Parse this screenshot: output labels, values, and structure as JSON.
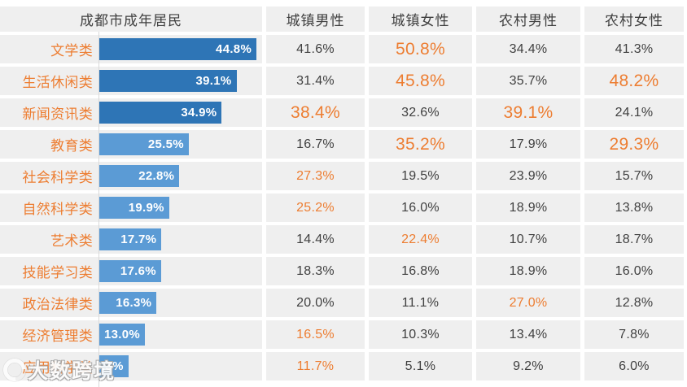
{
  "table": {
    "header": [
      "成都市成年居民",
      "城镇男性",
      "城镇女性",
      "农村男性",
      "农村女性"
    ],
    "rows": [
      {
        "label": "文学类",
        "bar": 44.8,
        "bar_label": "44.8%",
        "bar_style": "dark",
        "cells": [
          {
            "text": "41.6%",
            "style": "n"
          },
          {
            "text": "50.8%",
            "style": "big"
          },
          {
            "text": "34.4%",
            "style": "n"
          },
          {
            "text": "41.3%",
            "style": "n"
          }
        ]
      },
      {
        "label": "生活休闲类",
        "bar": 39.1,
        "bar_label": "39.1%",
        "bar_style": "dark",
        "cells": [
          {
            "text": "31.4%",
            "style": "n"
          },
          {
            "text": "45.8%",
            "style": "big"
          },
          {
            "text": "35.7%",
            "style": "n"
          },
          {
            "text": "48.2%",
            "style": "big"
          }
        ]
      },
      {
        "label": "新闻资讯类",
        "bar": 34.9,
        "bar_label": "34.9%",
        "bar_style": "dark",
        "cells": [
          {
            "text": "38.4%",
            "style": "big"
          },
          {
            "text": "32.6%",
            "style": "n"
          },
          {
            "text": "39.1%",
            "style": "big"
          },
          {
            "text": "24.1%",
            "style": "n"
          }
        ]
      },
      {
        "label": "教育类",
        "bar": 25.5,
        "bar_label": "25.5%",
        "bar_style": "light",
        "cells": [
          {
            "text": "16.7%",
            "style": "n"
          },
          {
            "text": "35.2%",
            "style": "big"
          },
          {
            "text": "17.9%",
            "style": "n"
          },
          {
            "text": "29.3%",
            "style": "big"
          }
        ]
      },
      {
        "label": "社会科学类",
        "bar": 22.8,
        "bar_label": "22.8%",
        "bar_style": "light",
        "cells": [
          {
            "text": "27.3%",
            "style": "orange"
          },
          {
            "text": "19.5%",
            "style": "n"
          },
          {
            "text": "23.9%",
            "style": "n"
          },
          {
            "text": "15.7%",
            "style": "n"
          }
        ]
      },
      {
        "label": "自然科学类",
        "bar": 19.9,
        "bar_label": "19.9%",
        "bar_style": "light",
        "cells": [
          {
            "text": "25.2%",
            "style": "orange"
          },
          {
            "text": "16.0%",
            "style": "n"
          },
          {
            "text": "18.9%",
            "style": "n"
          },
          {
            "text": "13.8%",
            "style": "n"
          }
        ]
      },
      {
        "label": "艺术类",
        "bar": 17.7,
        "bar_label": "17.7%",
        "bar_style": "light",
        "cells": [
          {
            "text": "14.4%",
            "style": "n"
          },
          {
            "text": "22.4%",
            "style": "orange"
          },
          {
            "text": "10.7%",
            "style": "n"
          },
          {
            "text": "18.7%",
            "style": "n"
          }
        ]
      },
      {
        "label": "技能学习类",
        "bar": 17.6,
        "bar_label": "17.6%",
        "bar_style": "light",
        "cells": [
          {
            "text": "18.3%",
            "style": "n"
          },
          {
            "text": "16.8%",
            "style": "n"
          },
          {
            "text": "18.9%",
            "style": "n"
          },
          {
            "text": "16.0%",
            "style": "n"
          }
        ]
      },
      {
        "label": "政治法律类",
        "bar": 16.3,
        "bar_label": "16.3%",
        "bar_style": "light",
        "cells": [
          {
            "text": "20.0%",
            "style": "n"
          },
          {
            "text": "11.1%",
            "style": "n"
          },
          {
            "text": "27.0%",
            "style": "orange"
          },
          {
            "text": "12.8%",
            "style": "n"
          }
        ]
      },
      {
        "label": "经济管理类",
        "bar": 13.0,
        "bar_label": "13.0%",
        "bar_style": "light",
        "cells": [
          {
            "text": "16.5%",
            "style": "orange"
          },
          {
            "text": "10.3%",
            "style": "n"
          },
          {
            "text": "13.4%",
            "style": "n"
          },
          {
            "text": "7.8%",
            "style": "n"
          }
        ]
      },
      {
        "label": "应用科学类",
        "bar": 8.3,
        "bar_label": "8.3%",
        "bar_style": "light",
        "cells": [
          {
            "text": "11.7%",
            "style": "orange"
          },
          {
            "text": "5.1%",
            "style": "n"
          },
          {
            "text": "9.2%",
            "style": "n"
          },
          {
            "text": "6.0%",
            "style": "n"
          }
        ]
      }
    ]
  },
  "watermark": {
    "text": "大数跨境",
    "logo": "crescent-icon"
  },
  "colors": {
    "bar_dark": "#2e75b6",
    "bar_light": "#5b9bd5",
    "accent_orange": "#ed7d31",
    "text_gray": "#404040",
    "row_bg": "#efefef",
    "axis_line": "#d9d9d9"
  },
  "chart_data": {
    "type": "bar",
    "title": "成都市成年居民",
    "orientation": "horizontal",
    "categories": [
      "文学类",
      "生活休闲类",
      "新闻资讯类",
      "教育类",
      "社会科学类",
      "自然科学类",
      "艺术类",
      "技能学习类",
      "政治法律类",
      "经济管理类",
      "应用科学类"
    ],
    "series": [
      {
        "name": "成都市成年居民",
        "values": [
          44.8,
          39.1,
          34.9,
          25.5,
          22.8,
          19.9,
          17.7,
          17.6,
          16.3,
          13.0,
          8.3
        ]
      },
      {
        "name": "城镇男性",
        "values": [
          41.6,
          31.4,
          38.4,
          16.7,
          27.3,
          25.2,
          14.4,
          18.3,
          20.0,
          16.5,
          11.7
        ]
      },
      {
        "name": "城镇女性",
        "values": [
          50.8,
          45.8,
          32.6,
          35.2,
          19.5,
          16.0,
          22.4,
          16.8,
          11.1,
          10.3,
          5.1
        ]
      },
      {
        "name": "农村男性",
        "values": [
          34.4,
          35.7,
          39.1,
          17.9,
          23.9,
          18.9,
          10.7,
          18.9,
          27.0,
          13.4,
          9.2
        ]
      },
      {
        "name": "农村女性",
        "values": [
          41.3,
          48.2,
          24.1,
          29.3,
          15.7,
          13.8,
          18.7,
          16.0,
          12.8,
          7.8,
          6.0
        ]
      }
    ],
    "xlim": [
      0,
      46.4
    ],
    "unit": "%",
    "grid": false,
    "legend_position": "top-header-row"
  }
}
